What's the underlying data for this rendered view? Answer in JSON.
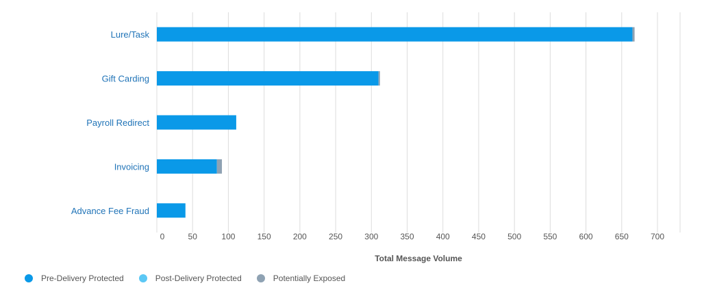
{
  "chart_data": {
    "type": "bar",
    "orientation": "horizontal",
    "stacked": true,
    "categories": [
      "Lure/Task",
      "Gift Carding",
      "Payroll Redirect",
      "Invoicing",
      "Advance Fee Fraud"
    ],
    "series": [
      {
        "name": "Pre-Delivery Protected",
        "color": "#0a99e8",
        "values": [
          665,
          310,
          111,
          84,
          40
        ]
      },
      {
        "name": "Post-Delivery Protected",
        "color": "#5cc8f5",
        "values": [
          0,
          0,
          0,
          0,
          0
        ]
      },
      {
        "name": "Potentially Exposed",
        "color": "#8fa2b3",
        "values": [
          3,
          2,
          0,
          7,
          0
        ]
      }
    ],
    "xlabel": "Total Message Volume",
    "xlim": [
      0,
      700
    ],
    "xticks": [
      0,
      50,
      100,
      150,
      200,
      250,
      300,
      350,
      400,
      450,
      500,
      550,
      600,
      650,
      700
    ],
    "grid": "vertical",
    "legend_position": "bottom-left"
  }
}
